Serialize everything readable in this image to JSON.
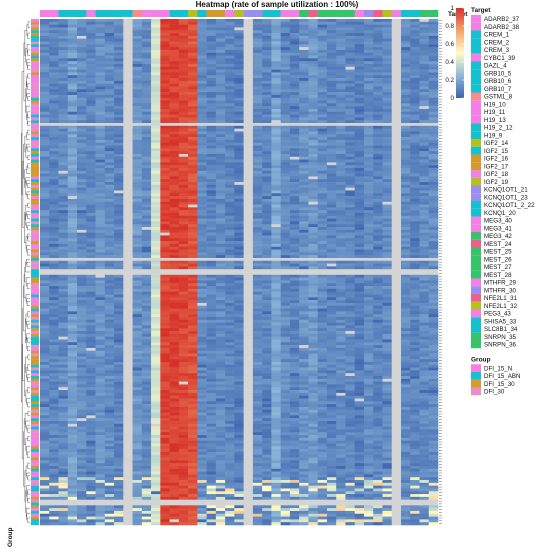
{
  "chart_data": {
    "type": "heatmap",
    "title": "Heatmap (rate of sample utilization : 100%)",
    "top_annotation_label": "Target",
    "side_annotation_label": "Group",
    "color_scale": {
      "min": 0,
      "max": 1,
      "ticks": [
        0,
        0.2,
        0.4,
        0.6,
        0.8,
        1
      ],
      "tick_labels": [
        "0",
        "0.2",
        "0.4",
        "0.6",
        "0.8",
        "1"
      ],
      "stops": [
        "#3b62ad",
        "#8fb9d9",
        "#fffcc4",
        "#f2a36b",
        "#d6312a"
      ]
    },
    "missing_color": "#d4d4d4",
    "legend_target": {
      "title": "Target",
      "items": [
        {
          "label": "ADARB2_37",
          "color": "#f47fe6"
        },
        {
          "label": "ADARB2_38",
          "color": "#f47fe6"
        },
        {
          "label": "CREM_1",
          "color": "#15c0cf"
        },
        {
          "label": "CREM_2",
          "color": "#15c0cf"
        },
        {
          "label": "CREM_3",
          "color": "#15c0cf"
        },
        {
          "label": "CYBC1_39",
          "color": "#f47fe6"
        },
        {
          "label": "DAZL_4",
          "color": "#15c0cf"
        },
        {
          "label": "GRB10_5",
          "color": "#15c0cf"
        },
        {
          "label": "GRB10_6",
          "color": "#15c0cf"
        },
        {
          "label": "GRB10_7",
          "color": "#15c0cf"
        },
        {
          "label": "GSTM1_8",
          "color": "#f88b8b"
        },
        {
          "label": "H19_10",
          "color": "#f47fe6"
        },
        {
          "label": "H19_11",
          "color": "#f47fe6"
        },
        {
          "label": "H19_13",
          "color": "#f47fe6"
        },
        {
          "label": "H19_2_12",
          "color": "#15c0cf"
        },
        {
          "label": "H19_9",
          "color": "#15c0cf"
        },
        {
          "label": "IGF2_14",
          "color": "#b3c11e"
        },
        {
          "label": "IGF2_15",
          "color": "#15c0cf"
        },
        {
          "label": "IGF2_16",
          "color": "#d49a2e"
        },
        {
          "label": "IGF2_17",
          "color": "#d49a2e"
        },
        {
          "label": "IGF2_18",
          "color": "#f47fe6"
        },
        {
          "label": "IGF2_19",
          "color": "#b3c11e"
        },
        {
          "label": "KCNQ1OT1_21",
          "color": "#9a8ef0"
        },
        {
          "label": "KCNQ1OT1_23",
          "color": "#9a8ef0"
        },
        {
          "label": "KCNQ1OT1_2_22",
          "color": "#15c0cf"
        },
        {
          "label": "KCNQ1_20",
          "color": "#15c0cf"
        },
        {
          "label": "MEG3_40",
          "color": "#f47fe6"
        },
        {
          "label": "MEG3_41",
          "color": "#f47fe6"
        },
        {
          "label": "MEG3_42",
          "color": "#36c46a"
        },
        {
          "label": "MEST_24",
          "color": "#ee5f8a"
        },
        {
          "label": "MEST_25",
          "color": "#36c46a"
        },
        {
          "label": "MEST_26",
          "color": "#36c46a"
        },
        {
          "label": "MEST_27",
          "color": "#36c46a"
        },
        {
          "label": "MEST_28",
          "color": "#36c46a"
        },
        {
          "label": "MTHFR_29",
          "color": "#f47fe6"
        },
        {
          "label": "MTHFR_30",
          "color": "#9a8ef0"
        },
        {
          "label": "NFE2L1_31",
          "color": "#ee5f8a"
        },
        {
          "label": "NFE2L1_32",
          "color": "#b3c11e"
        },
        {
          "label": "PEG3_43",
          "color": "#f47fe6"
        },
        {
          "label": "SHISA5_33",
          "color": "#15c0cf"
        },
        {
          "label": "SLC8B1_34",
          "color": "#15c0cf"
        },
        {
          "label": "SNRPN_35",
          "color": "#36c46a"
        },
        {
          "label": "SNRPN_36",
          "color": "#36c46a"
        }
      ]
    },
    "legend_group": {
      "title": "Group",
      "items": [
        {
          "label": "DFI_15_N",
          "color": "#f47fe6"
        },
        {
          "label": "DFI_15_ABN",
          "color": "#15c0cf"
        },
        {
          "label": "DFI_15_30",
          "color": "#d49a2e"
        },
        {
          "label": "DFI_30",
          "color": "#e88fc8"
        }
      ]
    },
    "n_rows": 180,
    "n_cols": 43,
    "column_value_profile": {
      "description": "typical per-column value (0-1) across most samples, left to right",
      "values": [
        0.12,
        0.1,
        0.12,
        0.18,
        0.12,
        0.1,
        0.14,
        0.12,
        0.1,
        0.22,
        0.15,
        0.12,
        0.4,
        0.96,
        0.97,
        0.95,
        0.93,
        0.12,
        0.1,
        0.12,
        0.1,
        0.08,
        0.14,
        0.12,
        0.1,
        0.2,
        0.12,
        0.1,
        0.14,
        0.16,
        0.12,
        0.1,
        0.12,
        0.1,
        0.08,
        0.12,
        0.1,
        0.12,
        0.1,
        0.12,
        0.1,
        0.12,
        0.12
      ]
    },
    "missing_columns": [
      9,
      22,
      38
    ],
    "missing_rows": [
      37,
      85,
      89,
      90,
      171,
      172
    ]
  }
}
